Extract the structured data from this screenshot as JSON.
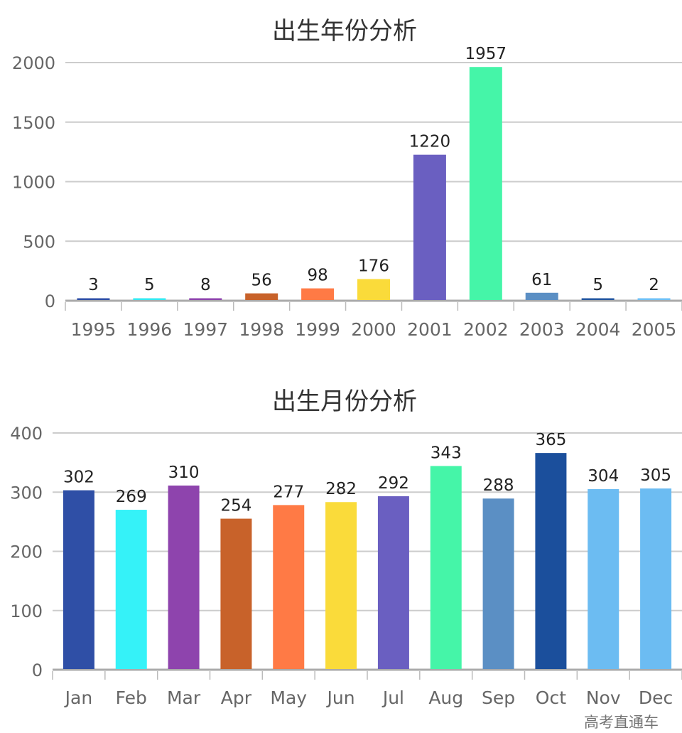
{
  "watermark": "高考直通车",
  "chart_data": [
    {
      "type": "bar",
      "title": "出生年份分析",
      "xlabel": "",
      "ylabel": "",
      "categories": [
        "1995",
        "1996",
        "1997",
        "1998",
        "1999",
        "2000",
        "2001",
        "2002",
        "2003",
        "2004",
        "2005"
      ],
      "values": [
        3,
        5,
        8,
        56,
        98,
        176,
        1220,
        1957,
        61,
        5,
        2
      ],
      "colors": [
        "#2f4fa6",
        "#35e8f0",
        "#8e44ad",
        "#c8622a",
        "#ff7a45",
        "#fadb3a",
        "#6a5fc1",
        "#45f5a8",
        "#5b8fc4",
        "#2457a0",
        "#6fc0f5"
      ],
      "ylim": [
        0,
        2000
      ],
      "yticks": [
        0,
        500,
        1000,
        1500,
        2000
      ],
      "grid": true
    },
    {
      "type": "bar",
      "title": "出生月份分析",
      "xlabel": "",
      "ylabel": "",
      "categories": [
        "Jan",
        "Feb",
        "Mar",
        "Apr",
        "May",
        "Jun",
        "Jul",
        "Aug",
        "Sep",
        "Oct",
        "Nov",
        "Dec"
      ],
      "values": [
        302,
        269,
        310,
        254,
        277,
        282,
        292,
        343,
        288,
        365,
        304,
        305
      ],
      "colors": [
        "#2f4fa6",
        "#35f2f8",
        "#8e44ad",
        "#c8622a",
        "#ff7a45",
        "#fadb3a",
        "#6a5fc1",
        "#45f5a8",
        "#5b8fc4",
        "#1b4f9c",
        "#6cbcf2",
        "#6cbcf2"
      ],
      "ylim": [
        0,
        400
      ],
      "yticks": [
        0,
        100,
        200,
        300,
        400
      ],
      "grid": true
    }
  ]
}
